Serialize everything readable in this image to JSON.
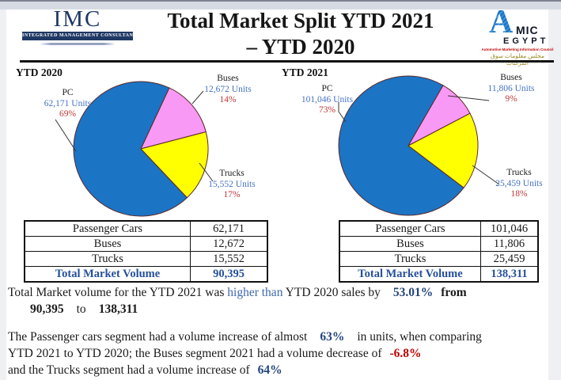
{
  "header": {
    "imc_acronym": "IMC",
    "imc_band": "Integrated Management Consultancy",
    "title_line1": "Total Market Split YTD 2021",
    "title_line2": "– YTD 2020",
    "amic_a": "A",
    "amic_mic": "MIC",
    "amic_egypt": "EGYPT",
    "amic_tagline": "Automotive Marketing Information Council",
    "amic_arabic": "مجلس معلومات سوق المركبات"
  },
  "chart_data": [
    {
      "type": "pie",
      "title": "YTD 2020",
      "categories": [
        "PC",
        "Buses",
        "Trucks"
      ],
      "values": [
        62171,
        12672,
        15552
      ],
      "start_angle_deg": 25,
      "legend": "none",
      "slices": [
        {
          "name": "Buses",
          "pct": 14,
          "color": "#f899f5"
        },
        {
          "name": "Trucks",
          "pct": 17,
          "color": "#ffff00"
        },
        {
          "name": "PC",
          "pct": 69,
          "color": "#1b74c4"
        }
      ],
      "labels": {
        "pc": {
          "name": "PC",
          "units": "62,171  Units",
          "pct": "69%"
        },
        "buses": {
          "name": "Buses",
          "units": "12,672 Units",
          "pct": "14%"
        },
        "trucks": {
          "name": "Trucks",
          "units": "15,552 Units",
          "pct": "17%"
        }
      }
    },
    {
      "type": "pie",
      "title": "YTD 2021",
      "categories": [
        "PC",
        "Buses",
        "Trucks"
      ],
      "values": [
        101046,
        11806,
        25459
      ],
      "start_angle_deg": 30,
      "legend": "none",
      "slices": [
        {
          "name": "Buses",
          "pct": 9,
          "color": "#f899f5"
        },
        {
          "name": "Trucks",
          "pct": 18,
          "color": "#ffff00"
        },
        {
          "name": "PC",
          "pct": 73,
          "color": "#1b74c4"
        }
      ],
      "labels": {
        "pc": {
          "name": "PC",
          "units": "101,046  Units",
          "pct": "73%"
        },
        "buses": {
          "name": "Buses",
          "units": "11,806 Units",
          "pct": "9%"
        },
        "trucks": {
          "name": "Trucks",
          "units": "25,459 Units",
          "pct": "18%"
        }
      }
    }
  ],
  "tables": [
    {
      "rows": [
        [
          "Passenger Cars",
          "62,171"
        ],
        [
          "Buses",
          "12,672"
        ],
        [
          "Trucks",
          "15,552"
        ]
      ],
      "total": [
        "Total Market Volume",
        "90,395"
      ]
    },
    {
      "rows": [
        [
          "Passenger Cars",
          "101,046"
        ],
        [
          "Buses",
          "11,806"
        ],
        [
          "Trucks",
          "25,459"
        ]
      ],
      "total": [
        "Total Market Volume",
        "138,311"
      ]
    }
  ],
  "summary": {
    "p1l1a": "Total Market volume for the YTD 2021 was ",
    "p1l1b": "higher than",
    "p1l1c": " YTD 2020 sales by",
    "p1l1d": "53.01%",
    "p1l1e": "from",
    "p1l2a": "90,395",
    "p1l2b": "to",
    "p1l2c": "138,311",
    "p2l1a": "The Passenger cars segment had a volume increase of almost",
    "p2l1b": "63%",
    "p2l1c": "in units, when comparing",
    "p2l2a": "YTD 2021 to YTD 2020; the Buses segment 2021  had a volume decrease of",
    "p2l2b": "-6.8%",
    "p2l3a": "and the Trucks segment had a volume increase of",
    "p2l3b": "64%"
  }
}
